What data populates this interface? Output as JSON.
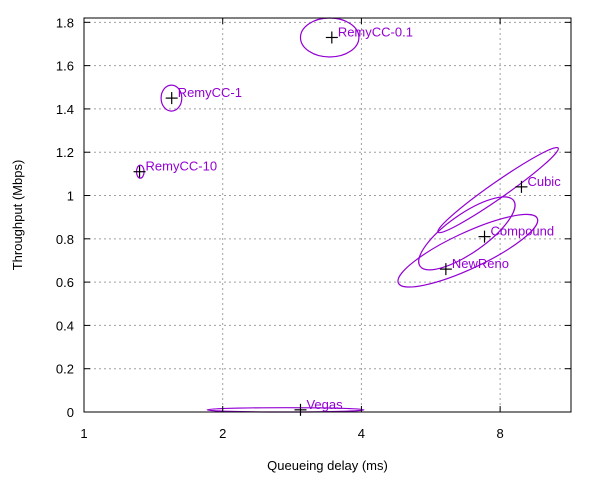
{
  "chart_data": {
    "type": "scatter",
    "title": "",
    "xlabel": "Queueing delay (ms)",
    "ylabel": "Throughput (Mbps)",
    "xscale": "log2",
    "xlim": [
      1,
      11.4
    ],
    "ylim": [
      0,
      1.82
    ],
    "grid": true,
    "colors": {
      "label": "#9400d3",
      "ellipse": "#9400d3",
      "marker": "#000000"
    },
    "x_ticks": [
      {
        "value": 1,
        "label": "1"
      },
      {
        "value": 2,
        "label": "2"
      },
      {
        "value": 4,
        "label": "4"
      },
      {
        "value": 8,
        "label": "8"
      }
    ],
    "y_ticks": [
      {
        "value": 0,
        "label": "0"
      },
      {
        "value": 0.2,
        "label": "0.2"
      },
      {
        "value": 0.4,
        "label": "0.4"
      },
      {
        "value": 0.6,
        "label": "0.6"
      },
      {
        "value": 0.8,
        "label": "0.8"
      },
      {
        "value": 1,
        "label": "1"
      },
      {
        "value": 1.2,
        "label": "1.2"
      },
      {
        "value": 1.4,
        "label": "1.4"
      },
      {
        "value": 1.6,
        "label": "1.6"
      },
      {
        "value": 1.8,
        "label": "1.8"
      }
    ],
    "points": [
      {
        "name": "RemyCC-0.1",
        "x": 3.45,
        "y": 1.73,
        "ellipse": {
          "x_range": [
            2.95,
            3.95
          ],
          "y_range": [
            1.64,
            1.82
          ],
          "angle": 0
        }
      },
      {
        "name": "RemyCC-1",
        "x": 1.55,
        "y": 1.45,
        "ellipse": {
          "x_range": [
            1.47,
            1.63
          ],
          "y_range": [
            1.39,
            1.51
          ],
          "angle": 0
        }
      },
      {
        "name": "RemyCC-10",
        "x": 1.32,
        "y": 1.11,
        "ellipse": {
          "x_range": [
            1.3,
            1.35
          ],
          "y_range": [
            1.08,
            1.14
          ],
          "angle": 0
        }
      },
      {
        "name": "Cubic",
        "x": 8.9,
        "y": 1.04,
        "ellipse": {
          "x_range": [
            5.5,
            11.4
          ],
          "y_range": [
            0.84,
            1.21
          ],
          "angle": -35
        }
      },
      {
        "name": "Compound",
        "x": 7.4,
        "y": 0.81,
        "ellipse": {
          "x_range": [
            4.5,
            10.3
          ],
          "y_range": [
            0.52,
            0.97
          ],
          "angle": -25
        }
      },
      {
        "name": "NewReno",
        "x": 6.1,
        "y": 0.66,
        "ellipse": {
          "x_range": [
            5.1,
            9.0
          ],
          "y_range": [
            0.6,
            1.05
          ],
          "angle": -35
        }
      },
      {
        "name": "Vegas",
        "x": 2.95,
        "y": 0.01,
        "ellipse": {
          "x_range": [
            1.85,
            4.05
          ],
          "y_range": [
            0.0,
            0.02
          ],
          "angle": 0
        }
      }
    ]
  }
}
